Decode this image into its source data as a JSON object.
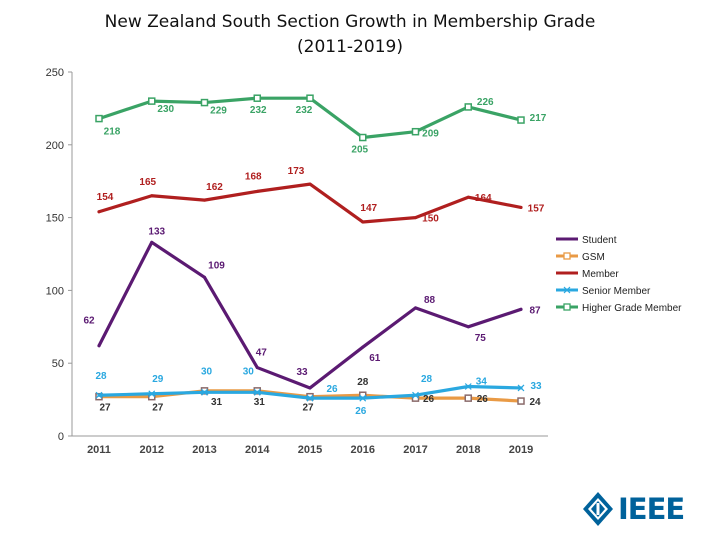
{
  "title": {
    "line1": "New Zealand South Section Growth in Membership Grade",
    "line2": "(2011-2019)"
  },
  "logo": {
    "text": "IEEE",
    "color": "#00629b"
  },
  "chart_data": {
    "type": "line",
    "x": [
      "2011",
      "2012",
      "2013",
      "2014",
      "2015",
      "2016",
      "2017",
      "2018",
      "2019"
    ],
    "ylim": [
      0,
      250
    ],
    "yticks": [
      "0",
      "50",
      "100",
      "150",
      "200",
      "250"
    ],
    "grid": false,
    "legend": "right",
    "series": [
      {
        "name": "Student",
        "color": "#5b1a72",
        "marker": "none",
        "values": [
          62,
          133,
          109,
          47,
          33,
          61,
          88,
          75,
          87
        ],
        "labels": [
          "62",
          "133",
          "109",
          "47",
          "33",
          "61",
          "88",
          "75",
          "87"
        ]
      },
      {
        "name": "GSM",
        "color": "#e99a45",
        "marker": "square",
        "values": [
          27,
          27,
          31,
          31,
          27,
          28,
          26,
          26,
          24
        ],
        "labels": [
          "27",
          "27",
          "31",
          "31",
          "27",
          "28",
          "26",
          "26",
          "24"
        ]
      },
      {
        "name": "Member",
        "color": "#b01f1f",
        "marker": "none",
        "values": [
          154,
          165,
          162,
          168,
          173,
          147,
          150,
          164,
          157
        ],
        "labels": [
          "154",
          "165",
          "162",
          "168",
          "173",
          "147",
          "150",
          "164",
          "157"
        ]
      },
      {
        "name": "Senior Member",
        "color": "#2aa8e0",
        "marker": "x",
        "values": [
          28,
          29,
          30,
          30,
          26,
          26,
          28,
          34,
          33
        ],
        "labels": [
          "28",
          "29",
          "30",
          "30",
          "26",
          "26",
          "28",
          "34",
          "33"
        ]
      },
      {
        "name": "Higher Grade Member",
        "color": "#3aa365",
        "marker": "square",
        "values": [
          218,
          230,
          229,
          232,
          232,
          205,
          209,
          226,
          217
        ],
        "labels": [
          "218",
          "230",
          "229",
          "232",
          "232",
          "205",
          "209",
          "226",
          "217"
        ]
      }
    ]
  }
}
